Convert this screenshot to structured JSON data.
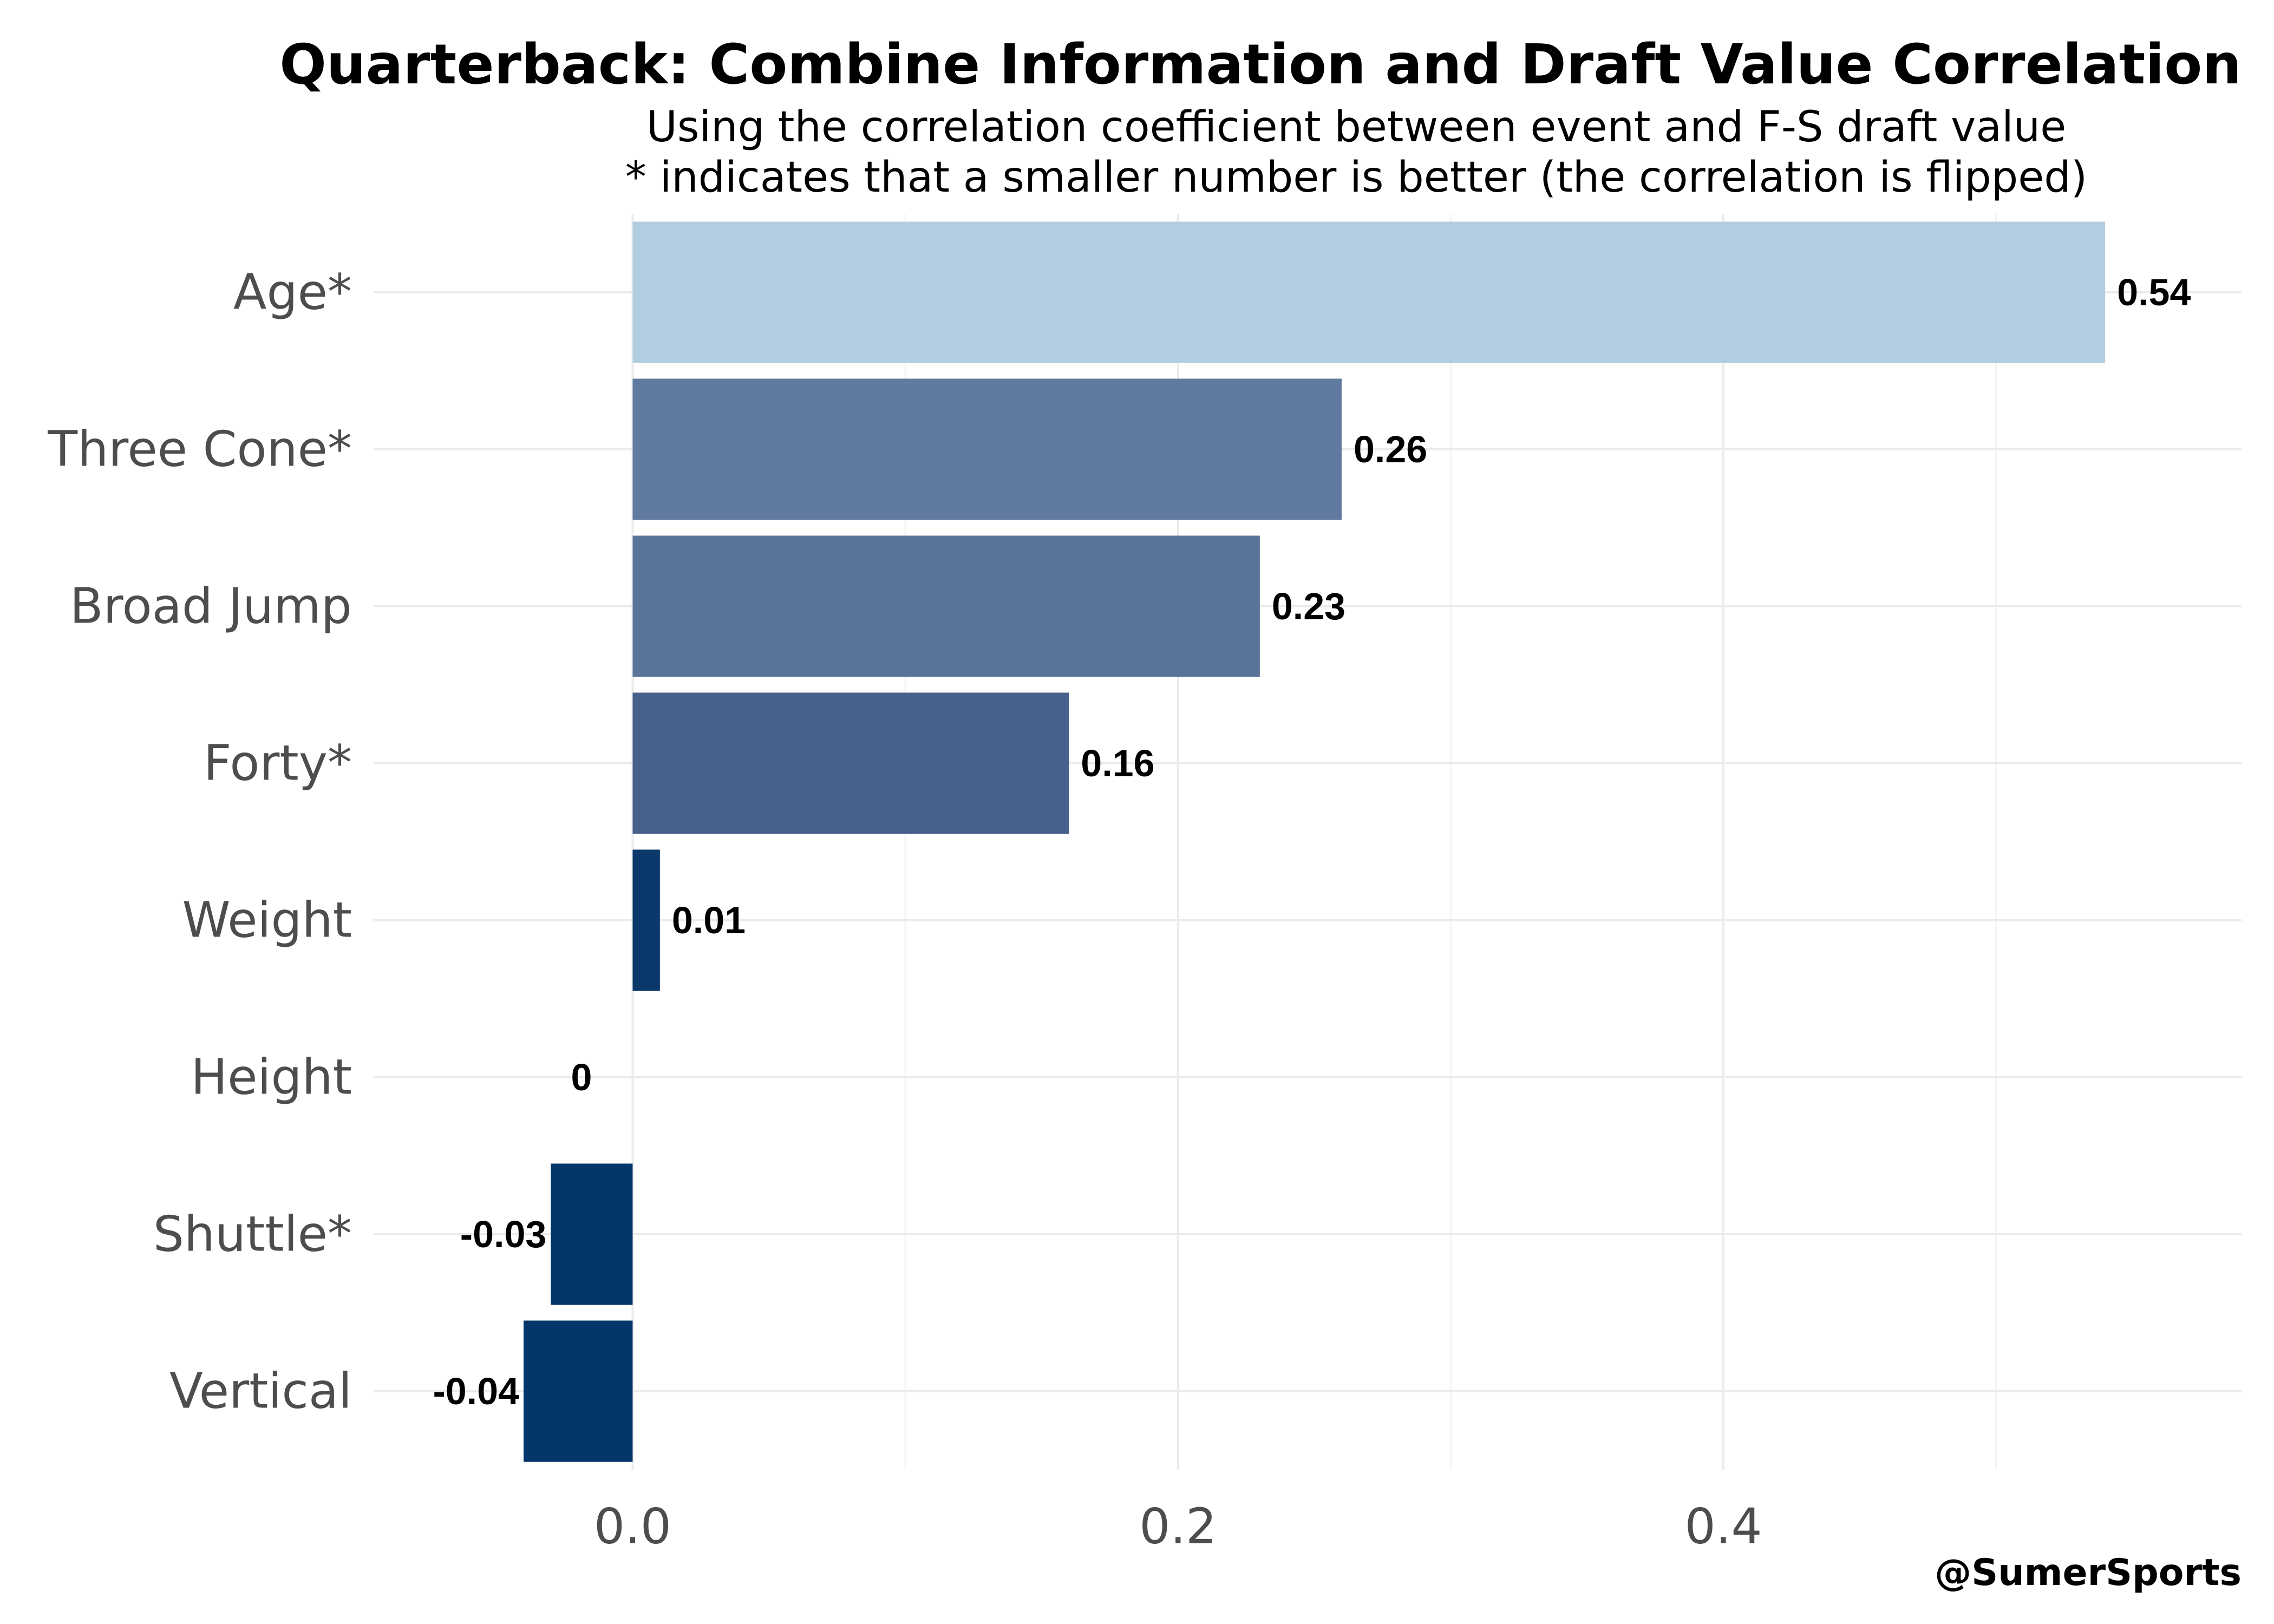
{
  "chart_data": {
    "type": "bar",
    "orientation": "horizontal",
    "title": "Quarterback: Combine Information and Draft Value Correlation",
    "subtitle_lines": [
      "Using the correlation coefficient between event and F-S draft value",
      "* indicates that a smaller number is better (the correlation is flipped)"
    ],
    "categories": [
      "Age*",
      "Three Cone*",
      "Broad Jump",
      "Forty*",
      "Weight",
      "Height",
      "Shuttle*",
      "Vertical"
    ],
    "values": [
      0.54,
      0.26,
      0.23,
      0.16,
      0.01,
      0,
      -0.03,
      -0.04
    ],
    "value_labels": [
      "0.54",
      "0.26",
      "0.23",
      "0.16",
      "0.01",
      "0",
      "-0.03",
      "-0.04"
    ],
    "bar_colors": [
      "#b3cde0",
      "#617ba0",
      "#5a7499",
      "#46618c",
      "#0a386b",
      "#03366a",
      "#03366a",
      "#03366a"
    ],
    "x_ticks": [
      0.0,
      0.2,
      0.4
    ],
    "x_tick_labels": [
      "0.0",
      "0.2",
      "0.4"
    ],
    "xlim": [
      -0.095,
      0.59
    ],
    "xlabel": "",
    "ylabel": "",
    "grid": true,
    "legend": "none",
    "credit": "@SumerSports"
  }
}
